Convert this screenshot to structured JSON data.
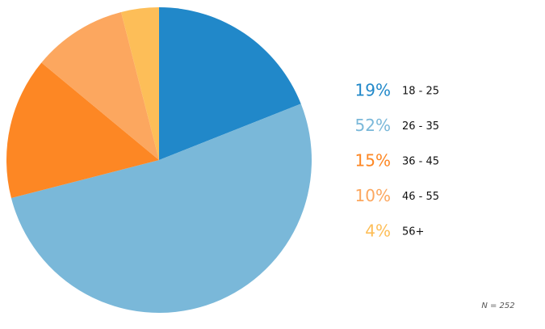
{
  "chart_data": {
    "type": "pie",
    "categories": [
      "18 - 25",
      "26 - 35",
      "36 - 45",
      "46 - 55",
      "56+"
    ],
    "values": [
      19,
      52,
      15,
      10,
      4
    ],
    "value_labels": [
      "19%",
      "52%",
      "15%",
      "10%",
      "4%"
    ],
    "colors": [
      "#2188c9",
      "#7ab8d9",
      "#fd8724",
      "#fca75f",
      "#fdbe58"
    ],
    "annotation": "N = 252"
  }
}
